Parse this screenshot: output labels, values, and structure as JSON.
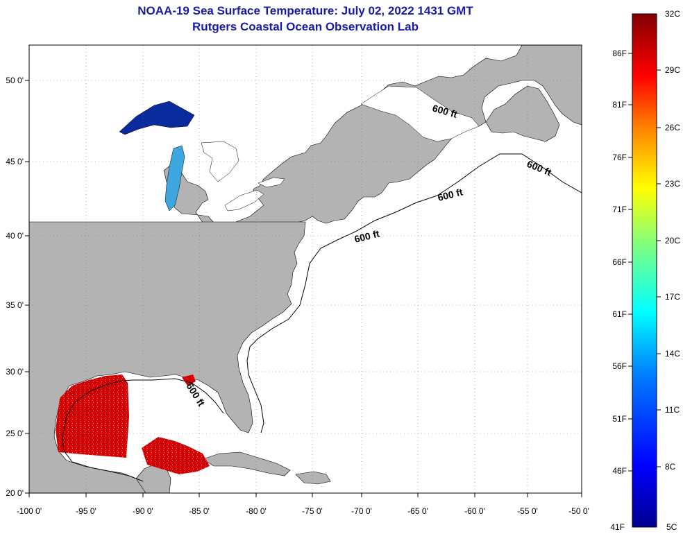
{
  "title": {
    "line1": "NOAA-19 Sea Surface Temperature:  July 02, 2022 1431 GMT",
    "line2": "Rutgers Coastal Ocean Observation Lab"
  },
  "map": {
    "lon_range": [
      -100,
      -50
    ],
    "lat_range": [
      20,
      52.5
    ],
    "lon_ticks": [
      "-100 0'",
      "-95 0'",
      "-90 0'",
      "-85 0'",
      "-80 0'",
      "-75 0'",
      "-70 0'",
      "-65 0'",
      "-60 0'",
      "-55 0'",
      "-50 0'"
    ],
    "lat_ticks": [
      "50 0'",
      "45 0'",
      "40 0'",
      "35 0'",
      "30 0'",
      "25 0'",
      "20 0'"
    ],
    "land_color": "#b3b3b3",
    "ocean_color": "#ffffff",
    "contour_labels": [
      "600 ft",
      "600 ft",
      "600 ft",
      "600 ft",
      "600 ft"
    ]
  },
  "colorbar": {
    "celsius": [
      "32C",
      "29C",
      "26C",
      "23C",
      "20C",
      "17C",
      "14C",
      "11C",
      "8C",
      "5C"
    ],
    "fahrenheit": [
      "86F",
      "81F",
      "76F",
      "71F",
      "66F",
      "61F",
      "56F",
      "51F",
      "46F",
      "41F"
    ],
    "stops": [
      "#00008f",
      "#0000ff",
      "#0080ff",
      "#00ffff",
      "#80ff80",
      "#ffff00",
      "#ff8000",
      "#ff0000",
      "#800000"
    ]
  }
}
